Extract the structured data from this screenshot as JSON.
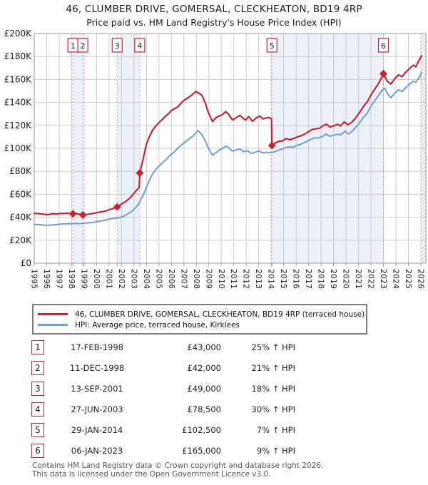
{
  "header": {
    "title_line1": "46, CLUMBER DRIVE, GOMERSAL, CLECKHEATON, BD19 4RP",
    "title_line2": "Price paid vs. HM Land Registry's House Price Index (HPI)"
  },
  "chart_data": {
    "type": "line",
    "title": "46, CLUMBER DRIVE, GOMERSAL, CLECKHEATON, BD19 4RP",
    "subtitle": "Price paid vs. HM Land Registry's House Price Index (HPI)",
    "xlim": [
      1995,
      2026.4
    ],
    "ylim": [
      0,
      200000
    ],
    "grid": true,
    "legend_position": "below",
    "x_ticks": [
      1995,
      1996,
      1997,
      1998,
      1999,
      2000,
      2001,
      2002,
      2003,
      2004,
      2005,
      2006,
      2007,
      2008,
      2009,
      2010,
      2011,
      2012,
      2013,
      2014,
      2015,
      2016,
      2017,
      2018,
      2019,
      2020,
      2021,
      2022,
      2023,
      2024,
      2025,
      2026
    ],
    "y_ticks": [
      {
        "value": 0,
        "label": "£0"
      },
      {
        "value": 20000,
        "label": "£20K"
      },
      {
        "value": 40000,
        "label": "£40K"
      },
      {
        "value": 60000,
        "label": "£60K"
      },
      {
        "value": 80000,
        "label": "£80K"
      },
      {
        "value": 100000,
        "label": "£100K"
      },
      {
        "value": 120000,
        "label": "£120K"
      },
      {
        "value": 140000,
        "label": "£140K"
      },
      {
        "value": 160000,
        "label": "£160K"
      },
      {
        "value": 180000,
        "label": "£180K"
      },
      {
        "value": 200000,
        "label": "£200K"
      }
    ],
    "colors": {
      "price_paid_line": "#c8232f",
      "hpi_line": "#6f9ed4",
      "sale_dashed_line": "#f08a8a",
      "ownership_band": "#edf1fa",
      "gridline": "#cccccc",
      "frame": "#9a9a9a",
      "hatch": "#bfbfbf",
      "marker_box_border": "#c8232f",
      "marker_box_text": "#222222"
    },
    "series": [
      {
        "name": "46, CLUMBER DRIVE, GOMERSAL, CLECKHEATON, BD19 4RP (terraced house)",
        "color": "#c8232f",
        "points": [
          [
            1995.0,
            43300
          ],
          [
            1995.25,
            43200
          ],
          [
            1995.5,
            43000
          ],
          [
            1995.75,
            42700
          ],
          [
            1996.1,
            42200
          ],
          [
            1996.35,
            42900
          ],
          [
            1996.6,
            43100
          ],
          [
            1996.85,
            42800
          ],
          [
            1997.1,
            43300
          ],
          [
            1997.35,
            43200
          ],
          [
            1997.6,
            43500
          ],
          [
            1997.85,
            43300
          ],
          [
            1998.1,
            43000
          ],
          [
            1998.4,
            43100
          ],
          [
            1998.6,
            42700
          ],
          [
            1998.9,
            42000
          ],
          [
            1999.2,
            42400
          ],
          [
            1999.5,
            42900
          ],
          [
            1999.8,
            43400
          ],
          [
            2000.1,
            44200
          ],
          [
            2000.4,
            44700
          ],
          [
            2000.7,
            45300
          ],
          [
            2001.0,
            46500
          ],
          [
            2001.3,
            47500
          ],
          [
            2001.65,
            49000
          ],
          [
            2002.0,
            51500
          ],
          [
            2002.3,
            53500
          ],
          [
            2002.6,
            56000
          ],
          [
            2002.9,
            59500
          ],
          [
            2003.2,
            63500
          ],
          [
            2003.42,
            66000
          ],
          [
            2003.46,
            78500
          ],
          [
            2003.75,
            91500
          ],
          [
            2004.0,
            104000
          ],
          [
            2004.25,
            110500
          ],
          [
            2004.5,
            116000
          ],
          [
            2004.75,
            119500
          ],
          [
            2005.0,
            122500
          ],
          [
            2005.25,
            125000
          ],
          [
            2005.5,
            127700
          ],
          [
            2005.75,
            130000
          ],
          [
            2006.0,
            133000
          ],
          [
            2006.25,
            134500
          ],
          [
            2006.5,
            136000
          ],
          [
            2006.75,
            139000
          ],
          [
            2007.0,
            141800
          ],
          [
            2007.25,
            143500
          ],
          [
            2007.5,
            145300
          ],
          [
            2007.7,
            147000
          ],
          [
            2007.95,
            149500
          ],
          [
            2008.2,
            148000
          ],
          [
            2008.45,
            146000
          ],
          [
            2008.7,
            140000
          ],
          [
            2008.95,
            131500
          ],
          [
            2009.3,
            123200
          ],
          [
            2009.55,
            126500
          ],
          [
            2009.8,
            128000
          ],
          [
            2010.05,
            129000
          ],
          [
            2010.35,
            131900
          ],
          [
            2010.6,
            129500
          ],
          [
            2010.9,
            124700
          ],
          [
            2011.2,
            126700
          ],
          [
            2011.5,
            128800
          ],
          [
            2011.75,
            126000
          ],
          [
            2011.95,
            124700
          ],
          [
            2012.2,
            127700
          ],
          [
            2012.5,
            123600
          ],
          [
            2012.8,
            126500
          ],
          [
            2013.1,
            128100
          ],
          [
            2013.35,
            125500
          ],
          [
            2013.6,
            126500
          ],
          [
            2013.85,
            126700
          ],
          [
            2014.03,
            125700
          ],
          [
            2014.06,
            102500
          ],
          [
            2014.3,
            104500
          ],
          [
            2014.6,
            106000
          ],
          [
            2014.9,
            106500
          ],
          [
            2015.2,
            108500
          ],
          [
            2015.5,
            107500
          ],
          [
            2015.8,
            108500
          ],
          [
            2016.1,
            110000
          ],
          [
            2016.4,
            111000
          ],
          [
            2016.7,
            112500
          ],
          [
            2017.0,
            114500
          ],
          [
            2017.3,
            116500
          ],
          [
            2017.6,
            117000
          ],
          [
            2017.9,
            117500
          ],
          [
            2018.2,
            120000
          ],
          [
            2018.45,
            121000
          ],
          [
            2018.7,
            118500
          ],
          [
            2019.0,
            119500
          ],
          [
            2019.3,
            121000
          ],
          [
            2019.55,
            119500
          ],
          [
            2019.85,
            123000
          ],
          [
            2020.15,
            120500
          ],
          [
            2020.5,
            123000
          ],
          [
            2020.8,
            127000
          ],
          [
            2021.1,
            131500
          ],
          [
            2021.4,
            136500
          ],
          [
            2021.7,
            140500
          ],
          [
            2022.0,
            146500
          ],
          [
            2022.3,
            151500
          ],
          [
            2022.6,
            156500
          ],
          [
            2022.85,
            161500
          ],
          [
            2023.0,
            165000
          ],
          [
            2023.3,
            158500
          ],
          [
            2023.6,
            156000
          ],
          [
            2023.9,
            160500
          ],
          [
            2024.2,
            164000
          ],
          [
            2024.5,
            162500
          ],
          [
            2024.8,
            166500
          ],
          [
            2025.1,
            169500
          ],
          [
            2025.4,
            172500
          ],
          [
            2025.6,
            171000
          ],
          [
            2025.8,
            175500
          ],
          [
            2026.05,
            180500
          ]
        ]
      },
      {
        "name": "HPI: Average price, terraced house, Kirklees",
        "color": "#6f9ed4",
        "points": [
          [
            1995.0,
            33800
          ],
          [
            1995.3,
            33600
          ],
          [
            1995.6,
            33400
          ],
          [
            1995.9,
            33100
          ],
          [
            1996.2,
            33000
          ],
          [
            1996.5,
            33400
          ],
          [
            1996.8,
            33600
          ],
          [
            1997.1,
            34000
          ],
          [
            1997.4,
            34200
          ],
          [
            1997.7,
            34400
          ],
          [
            1998.0,
            34300
          ],
          [
            1998.3,
            34600
          ],
          [
            1998.6,
            34400
          ],
          [
            1998.9,
            34700
          ],
          [
            1999.2,
            34900
          ],
          [
            1999.5,
            35300
          ],
          [
            1999.8,
            35700
          ],
          [
            2000.1,
            36300
          ],
          [
            2000.4,
            36900
          ],
          [
            2000.7,
            37500
          ],
          [
            2001.0,
            38300
          ],
          [
            2001.3,
            38900
          ],
          [
            2001.6,
            39400
          ],
          [
            2001.9,
            39900
          ],
          [
            2002.2,
            41000
          ],
          [
            2002.5,
            43000
          ],
          [
            2002.8,
            45000
          ],
          [
            2003.1,
            48000
          ],
          [
            2003.4,
            52000
          ],
          [
            2003.7,
            58500
          ],
          [
            2004.0,
            66000
          ],
          [
            2004.25,
            72500
          ],
          [
            2004.5,
            78000
          ],
          [
            2004.75,
            81500
          ],
          [
            2005.0,
            84500
          ],
          [
            2005.3,
            87500
          ],
          [
            2005.6,
            90500
          ],
          [
            2005.9,
            94000
          ],
          [
            2006.2,
            96500
          ],
          [
            2006.5,
            100000
          ],
          [
            2006.8,
            103000
          ],
          [
            2007.1,
            105500
          ],
          [
            2007.4,
            108000
          ],
          [
            2007.7,
            110500
          ],
          [
            2008.0,
            114000
          ],
          [
            2008.15,
            115500
          ],
          [
            2008.4,
            112500
          ],
          [
            2008.7,
            107000
          ],
          [
            2008.95,
            100500
          ],
          [
            2009.3,
            94000
          ],
          [
            2009.6,
            96500
          ],
          [
            2009.85,
            98500
          ],
          [
            2010.1,
            100000
          ],
          [
            2010.4,
            102000
          ],
          [
            2010.65,
            100000
          ],
          [
            2010.9,
            97500
          ],
          [
            2011.2,
            98500
          ],
          [
            2011.5,
            99500
          ],
          [
            2011.8,
            97000
          ],
          [
            2012.1,
            98000
          ],
          [
            2012.4,
            95500
          ],
          [
            2012.7,
            96500
          ],
          [
            2013.0,
            98000
          ],
          [
            2013.3,
            96000
          ],
          [
            2013.6,
            96500
          ],
          [
            2013.9,
            96300
          ],
          [
            2014.2,
            96800
          ],
          [
            2014.5,
            98000
          ],
          [
            2014.8,
            99000
          ],
          [
            2015.1,
            100300
          ],
          [
            2015.4,
            101300
          ],
          [
            2015.7,
            100800
          ],
          [
            2016.0,
            102300
          ],
          [
            2016.3,
            103300
          ],
          [
            2016.6,
            104800
          ],
          [
            2016.9,
            106300
          ],
          [
            2017.2,
            107800
          ],
          [
            2017.5,
            109300
          ],
          [
            2017.8,
            109000
          ],
          [
            2018.1,
            110300
          ],
          [
            2018.4,
            112500
          ],
          [
            2018.7,
            110500
          ],
          [
            2019.0,
            111300
          ],
          [
            2019.3,
            112300
          ],
          [
            2019.6,
            111800
          ],
          [
            2019.9,
            115000
          ],
          [
            2020.2,
            112500
          ],
          [
            2020.5,
            115000
          ],
          [
            2020.8,
            118500
          ],
          [
            2021.1,
            122500
          ],
          [
            2021.4,
            127000
          ],
          [
            2021.7,
            130500
          ],
          [
            2022.0,
            137000
          ],
          [
            2022.3,
            141500
          ],
          [
            2022.6,
            146000
          ],
          [
            2022.9,
            150500
          ],
          [
            2023.1,
            152500
          ],
          [
            2023.4,
            146500
          ],
          [
            2023.6,
            144000
          ],
          [
            2023.9,
            148000
          ],
          [
            2024.2,
            151000
          ],
          [
            2024.5,
            149500
          ],
          [
            2024.8,
            153000
          ],
          [
            2025.1,
            156000
          ],
          [
            2025.4,
            158500
          ],
          [
            2025.6,
            157500
          ],
          [
            2025.9,
            162500
          ],
          [
            2026.05,
            166000
          ]
        ]
      }
    ],
    "sales": [
      {
        "n": "1",
        "date_decimal": 1998.1,
        "price": 43000
      },
      {
        "n": "2",
        "date_decimal": 1998.9,
        "price": 42000
      },
      {
        "n": "3",
        "date_decimal": 2001.65,
        "price": 49000
      },
      {
        "n": "4",
        "date_decimal": 2003.46,
        "price": 78500
      },
      {
        "n": "5",
        "date_decimal": 2014.06,
        "price": 102500
      },
      {
        "n": "6",
        "date_decimal": 2023.0,
        "price": 165000
      }
    ],
    "ownership_bands": [
      [
        1998.1,
        1998.9
      ],
      [
        2001.65,
        2003.46
      ],
      [
        2014.06,
        2023.0
      ]
    ],
    "future_hatch_from": 2026.0
  },
  "sales_table": {
    "rows": [
      {
        "num": "1",
        "date": "17-FEB-1998",
        "price": "£43,000",
        "vs_hpi": "25% ↑ HPI"
      },
      {
        "num": "2",
        "date": "11-DEC-1998",
        "price": "£42,000",
        "vs_hpi": "21% ↑ HPI"
      },
      {
        "num": "3",
        "date": "13-SEP-2001",
        "price": "£49,000",
        "vs_hpi": "18% ↑ HPI"
      },
      {
        "num": "4",
        "date": "27-JUN-2003",
        "price": "£78,500",
        "vs_hpi": "30% ↑ HPI"
      },
      {
        "num": "5",
        "date": "29-JAN-2014",
        "price": "£102,500",
        "vs_hpi": "7% ↑ HPI"
      },
      {
        "num": "6",
        "date": "06-JAN-2023",
        "price": "£165,000",
        "vs_hpi": "9% ↑ HPI"
      }
    ]
  },
  "footer": {
    "line1": "Contains HM Land Registry data © Crown copyright and database right 2026.",
    "line2": "This data is licensed under the Open Government Licence v3.0."
  }
}
